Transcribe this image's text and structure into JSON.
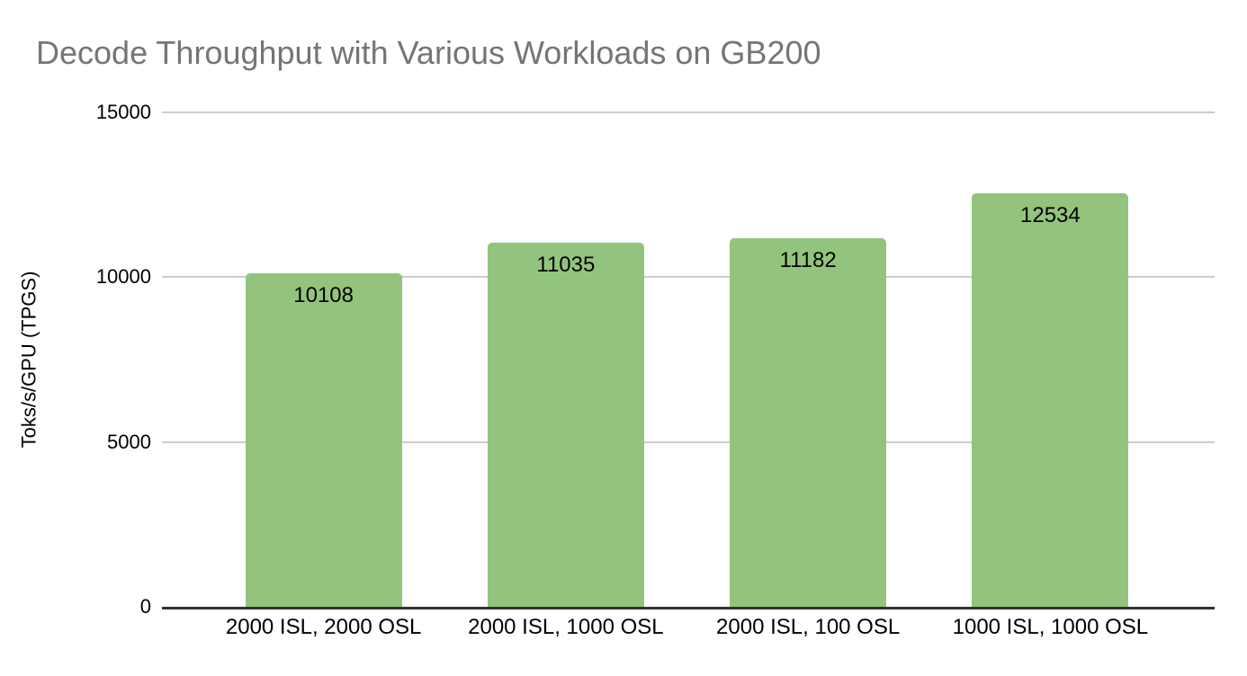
{
  "chart_data": {
    "type": "bar",
    "title": "Decode Throughput with Various Workloads on GB200",
    "xlabel": "",
    "ylabel": "Toks/s/GPU (TPGS)",
    "categories": [
      "2000 ISL, 2000 OSL",
      "2000 ISL, 1000 OSL",
      "2000 ISL, 100 OSL",
      "1000 ISL, 1000 OSL"
    ],
    "values": [
      10108,
      11035,
      11182,
      12534
    ],
    "yticks": [
      0,
      5000,
      10000,
      15000
    ],
    "ylim": [
      0,
      15000
    ],
    "grid": true,
    "legend_position": "none",
    "colors": {
      "bar": "#93c47d",
      "gridline": "#cccccc",
      "axis_baseline": "#333333",
      "title_text": "#757575",
      "label_text": "#000000",
      "background": "#ffffff"
    }
  }
}
